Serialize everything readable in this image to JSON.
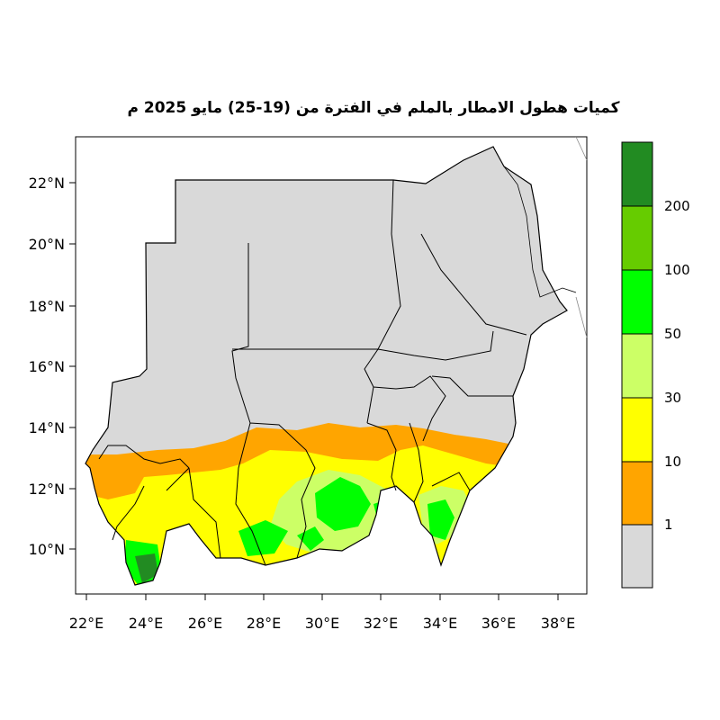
{
  "title": "كميات هطول الامطار بالملم في الفترة من (19-25) مايو 2025 م",
  "map": {
    "x_ticks": [
      "22°E",
      "24°E",
      "26°E",
      "28°E",
      "30°E",
      "32°E",
      "34°E",
      "36°E",
      "38°E"
    ],
    "y_ticks": [
      "10°N",
      "12°N",
      "14°N",
      "16°N",
      "18°N",
      "20°N",
      "22°N"
    ],
    "land_color": "#d9d9d9",
    "border_color": "#000000"
  },
  "legend": {
    "classes": [
      {
        "color": "#d9d9d9",
        "label": "1"
      },
      {
        "color": "#ffa500",
        "label": "10"
      },
      {
        "color": "#ffff00",
        "label": "30"
      },
      {
        "color": "#ccff66",
        "label": "50"
      },
      {
        "color": "#00ff00",
        "label": "100"
      },
      {
        "color": "#66cc00",
        "label": "200"
      },
      {
        "color": "#228b22",
        "label": ""
      }
    ]
  }
}
